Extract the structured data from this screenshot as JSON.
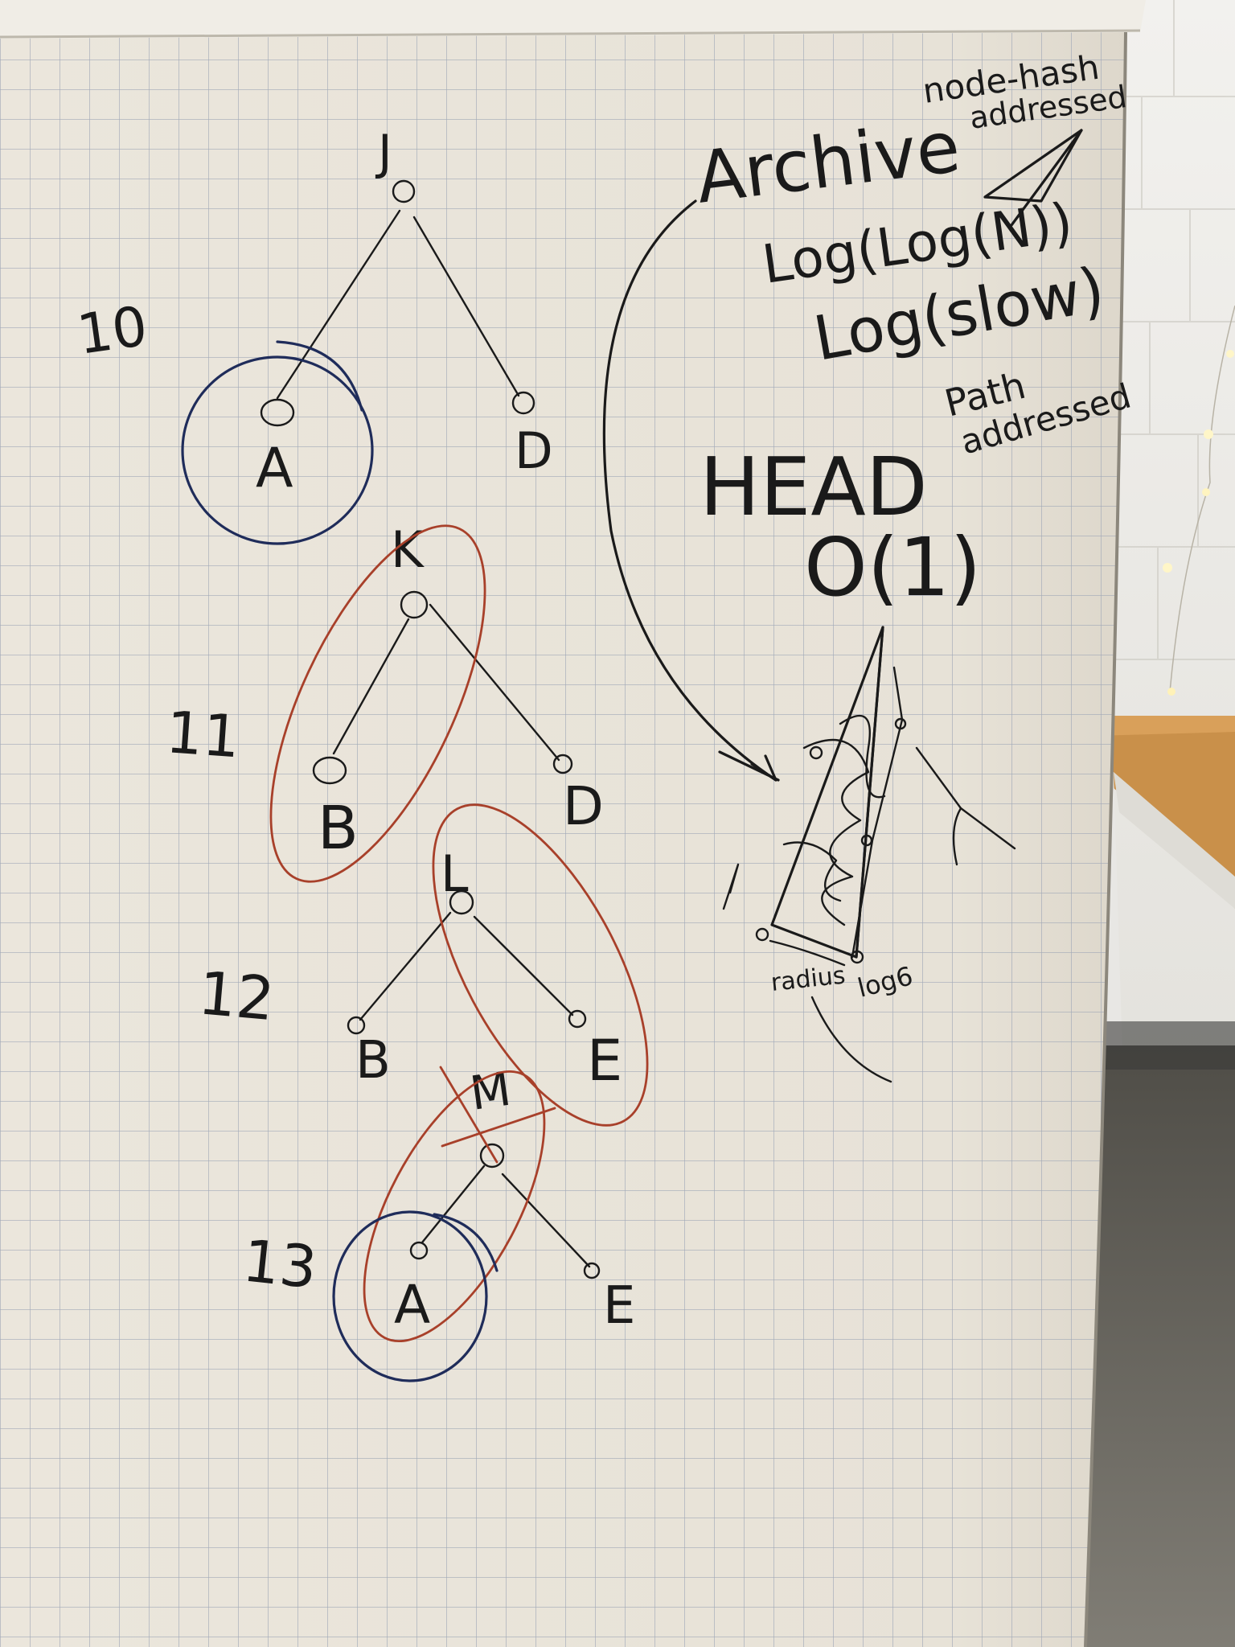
{
  "colors": {
    "paper": "#ebe6dc",
    "grid": "#9aa3b4",
    "ink_black": "#1a1a1a",
    "ink_blue": "#1f2c5a",
    "ink_red": "#a8402a",
    "wall": "#e8e6e1",
    "bench_wood": "#c9904a",
    "floor": "#6d6b64"
  },
  "trees": [
    {
      "step_label": "10",
      "root_label": "J",
      "left_child_label": "A",
      "right_child_label": "D",
      "highlight": "blue circle around A"
    },
    {
      "step_label": "11",
      "root_label": "K",
      "left_child_label": "B",
      "right_child_label": "D",
      "highlight": "red oval around K and B"
    },
    {
      "step_label": "12",
      "root_label": "L",
      "left_child_label": "B",
      "right_child_label": "E",
      "highlight": "red oval around L and E"
    },
    {
      "step_label": "13",
      "root_label": "M",
      "left_child_label": "A",
      "right_child_label": "E",
      "highlight": "red oval around M and A, blue circle around A"
    }
  ],
  "notes": {
    "node_hash": "node-hash",
    "addressed_1": "addressed",
    "archive": "Archive",
    "log_log": "Log(Log(N))",
    "log_slow": "Log(slow)",
    "path": "Path",
    "addressed_2": "addressed",
    "head": "HEAD",
    "big_o": "O(1)",
    "radius": "radius",
    "log_b": "log6"
  }
}
